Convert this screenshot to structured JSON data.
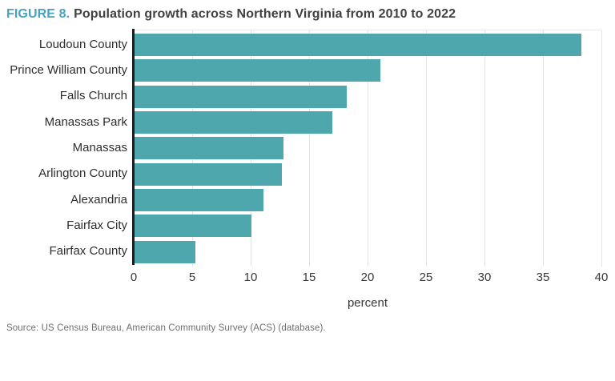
{
  "figure": {
    "label": "FIGURE 8.",
    "title": "Population growth across Northern Virginia from 2010 to 2022"
  },
  "chart_data": {
    "type": "bar",
    "orientation": "horizontal",
    "title": "Population growth across Northern Virginia from 2010 to 2022",
    "categories": [
      "Loudoun County",
      "Prince William County",
      "Falls Church",
      "Manassas Park",
      "Manassas",
      "Arlington County",
      "Alexandria",
      "Fairfax City",
      "Fairfax County"
    ],
    "values": [
      38.3,
      21.1,
      18.2,
      17.0,
      12.8,
      12.7,
      11.1,
      10.1,
      5.3
    ],
    "xlabel": "percent",
    "ylabel": "",
    "xlim": [
      0,
      40
    ],
    "xticks": [
      0,
      5,
      10,
      15,
      20,
      25,
      30,
      35,
      40
    ],
    "grid": "vertical",
    "legend": "none",
    "bar_color": "#4da7ad"
  },
  "x_axis_title": "percent",
  "source_note": "Source: US Census Bureau, American Community Survey (ACS) (database).",
  "colors": {
    "figure_label": "#44a3c4",
    "title_text": "#414042",
    "bar": "#4da7ad",
    "axis_line": "#1c1c1c",
    "gridline": "#e3e3e3",
    "category_text": "#2f2c2e",
    "tick_text": "#3a383a",
    "source_text": "#6d6e71"
  }
}
